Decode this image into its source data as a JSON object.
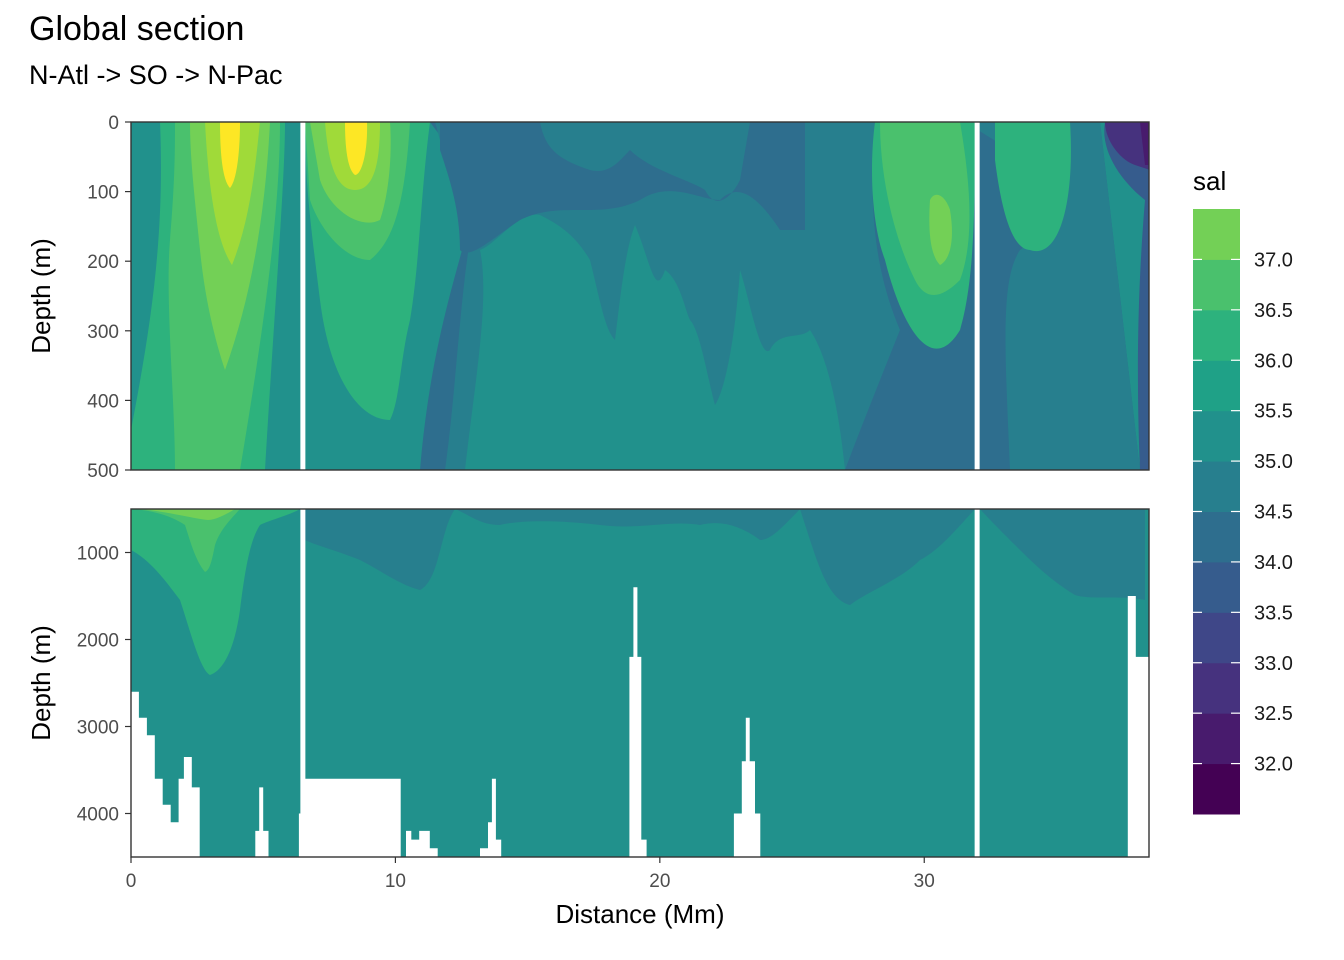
{
  "chart_data": {
    "type": "heatmap",
    "title": "Global section",
    "subtitle": "N-Atl -> SO -> N-Pac",
    "xlabel": "Distance (Mm)",
    "x_ticks": [
      "0",
      "10",
      "20",
      "30"
    ],
    "xlim": [
      0,
      38.5
    ],
    "legend": {
      "title": "sal",
      "position": "right",
      "breaks": [
        31.5,
        32.0,
        32.5,
        33.0,
        33.5,
        34.0,
        34.5,
        35.0,
        35.5,
        36.0,
        36.5,
        37.0,
        37.5
      ],
      "labels": [
        "32.0",
        "32.5",
        "33.0",
        "33.5",
        "34.0",
        "34.5",
        "35.0",
        "35.5",
        "36.0",
        "36.5",
        "37.0"
      ],
      "colors": [
        "#440154",
        "#481b6d",
        "#46327e",
        "#3f4788",
        "#365c8d",
        "#2e6e8e",
        "#277f8e",
        "#21918c",
        "#1fa187",
        "#2db27d",
        "#4ac16d",
        "#73d056",
        "#a0da39",
        "#d0e11c",
        "#fde725"
      ]
    },
    "panels": [
      {
        "name": "upper",
        "ylabel": "Depth (m)",
        "ylim": [
          0,
          500
        ],
        "y_ticks": [
          "0",
          "100",
          "200",
          "300",
          "400",
          "500"
        ],
        "station_gaps_x": [
          6.5,
          32.0
        ]
      },
      {
        "name": "lower",
        "ylabel": "Depth (m)",
        "ylim": [
          500,
          4500
        ],
        "y_ticks": [
          "1000",
          "2000",
          "3000",
          "4000"
        ],
        "station_gaps_x": [
          6.5,
          32.0
        ],
        "bottom_depth_m": [
          [
            0,
            2600
          ],
          [
            0.3,
            2900
          ],
          [
            0.6,
            3100
          ],
          [
            0.9,
            3600
          ],
          [
            1.2,
            3900
          ],
          [
            1.5,
            4100
          ],
          [
            1.8,
            3600
          ],
          [
            2.0,
            3350
          ],
          [
            2.3,
            3700
          ],
          [
            2.6,
            4500
          ],
          [
            4.6,
            4500
          ],
          [
            4.7,
            4200
          ],
          [
            4.85,
            3700
          ],
          [
            5.0,
            4200
          ],
          [
            5.2,
            4500
          ],
          [
            6.2,
            4500
          ],
          [
            6.35,
            4000
          ],
          [
            6.45,
            3600
          ],
          [
            6.5,
            3600
          ],
          [
            10.2,
            4500
          ],
          [
            10.4,
            4200
          ],
          [
            10.6,
            4300
          ],
          [
            10.9,
            4200
          ],
          [
            11.3,
            4400
          ],
          [
            11.6,
            4500
          ],
          [
            13.2,
            4400
          ],
          [
            13.5,
            4100
          ],
          [
            13.65,
            3600
          ],
          [
            13.8,
            4300
          ],
          [
            14.0,
            4500
          ],
          [
            18.7,
            4500
          ],
          [
            18.85,
            2200
          ],
          [
            19.0,
            1400
          ],
          [
            19.15,
            2200
          ],
          [
            19.3,
            4300
          ],
          [
            19.5,
            4500
          ],
          [
            22.5,
            4500
          ],
          [
            22.8,
            4000
          ],
          [
            23.1,
            3400
          ],
          [
            23.25,
            2900
          ],
          [
            23.4,
            3400
          ],
          [
            23.6,
            4000
          ],
          [
            23.8,
            4500
          ],
          [
            37.6,
            4500
          ],
          [
            37.7,
            1500
          ],
          [
            37.85,
            1500
          ],
          [
            38.0,
            2200
          ],
          [
            38.5,
            4500
          ]
        ]
      }
    ]
  }
}
